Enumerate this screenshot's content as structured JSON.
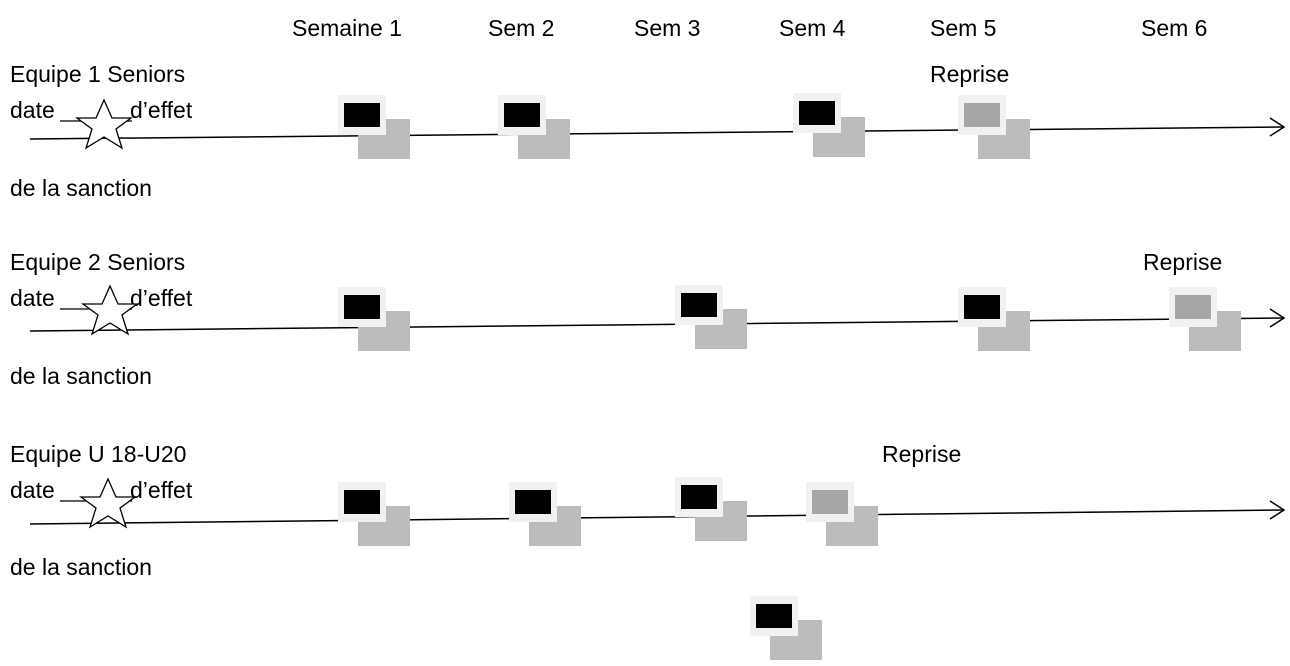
{
  "weeks": [
    "Semaine 1",
    "Sem 2",
    "Sem 3",
    "Sem 4",
    "Sem 5",
    "Sem 6"
  ],
  "rows": [
    {
      "team": "Equipe 1 Seniors",
      "date_prefix": "date",
      "date_suffix": "d’effet",
      "sanction": "de la sanction",
      "reprise": "Reprise"
    },
    {
      "team": "Equipe 2 Seniors",
      "date_prefix": "date",
      "date_suffix": "d’effet",
      "sanction": "de la sanction",
      "reprise": "Reprise"
    },
    {
      "team": "Equipe U 18-U20",
      "date_prefix": "date",
      "date_suffix": "d’effet",
      "sanction": "de la sanction",
      "reprise": "Reprise"
    }
  ],
  "colors": {
    "suspended_match": "#000000",
    "reprise_match": "#a6a6a6",
    "shadow": "#bcbcbc",
    "frame": "#f1f1f1"
  }
}
